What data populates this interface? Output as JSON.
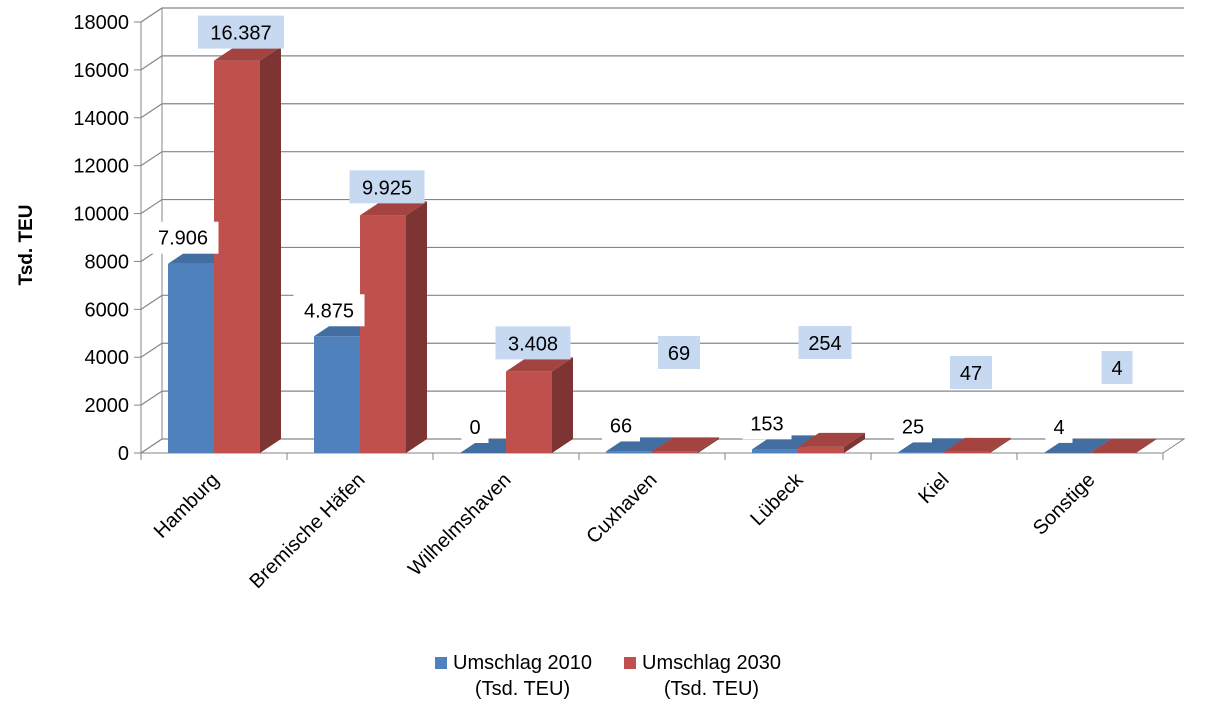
{
  "chart_data": {
    "type": "bar",
    "title": "",
    "ylabel": "Tsd. TEU",
    "xlabel": "",
    "ylim": [
      0,
      18000
    ],
    "yticks": [
      0,
      2000,
      4000,
      6000,
      8000,
      10000,
      12000,
      14000,
      16000,
      18000
    ],
    "grid": true,
    "legend_position": "bottom",
    "categories": [
      "Hamburg",
      "Bremische Häfen",
      "Wilhelmshaven",
      "Cuxhaven",
      "Lübeck",
      "Kiel",
      "Sonstige"
    ],
    "series": [
      {
        "name": "Umschlag 2010\n(Tsd. TEU)",
        "color": "#4F81BD",
        "values": [
          7906,
          4875,
          0,
          66,
          153,
          25,
          4
        ],
        "labels": [
          "7.906",
          "4.875",
          "0",
          "66",
          "153",
          "25",
          "4"
        ]
      },
      {
        "name": "Umschlag 2030\n(Tsd. TEU)",
        "color": "#C0504D",
        "values": [
          16387,
          9925,
          3408,
          69,
          254,
          47,
          4
        ],
        "labels": [
          "16.387",
          "9.925",
          "3.408",
          "69",
          "254",
          "47",
          "4"
        ]
      }
    ]
  }
}
